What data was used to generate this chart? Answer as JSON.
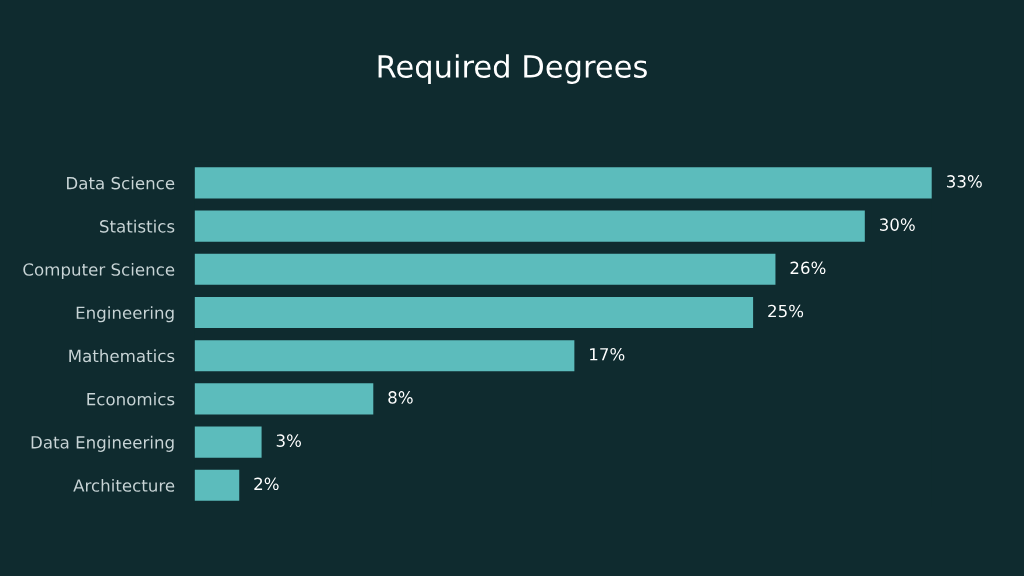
{
  "chart_data": {
    "type": "bar",
    "orientation": "horizontal",
    "title": "Required Degrees",
    "categories": [
      "Data Science",
      "Statistics",
      "Computer Science",
      "Engineering",
      "Mathematics",
      "Economics",
      "Data Engineering",
      "Architecture"
    ],
    "values": [
      33,
      30,
      26,
      25,
      17,
      8,
      3,
      2
    ],
    "value_labels": [
      "33%",
      "30%",
      "26%",
      "25%",
      "17%",
      "8%",
      "3%",
      "2%"
    ],
    "color": "#5cbcbc"
  }
}
